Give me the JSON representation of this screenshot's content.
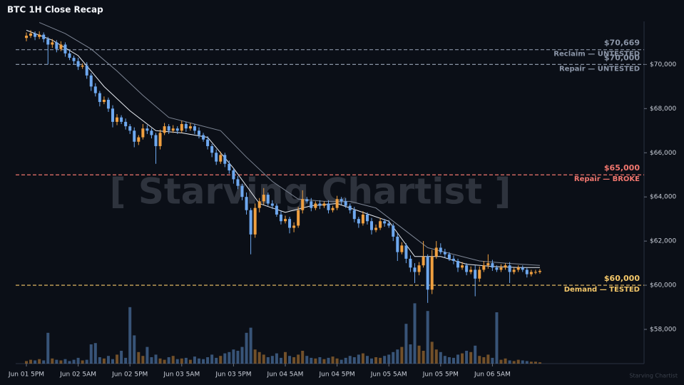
{
  "chart_data": {
    "type": "candlestick",
    "title": "BTC 1H Close Recap",
    "categories": [
      "Jun 01 5PM",
      null,
      null,
      null,
      null,
      null,
      null,
      null,
      null,
      null,
      null,
      null,
      "Jun 02 5AM",
      null,
      null,
      null,
      null,
      null,
      null,
      null,
      null,
      null,
      null,
      null,
      "Jun 02 5PM",
      null,
      null,
      null,
      null,
      null,
      null,
      null,
      null,
      null,
      null,
      null,
      "Jun 03 5AM",
      null,
      null,
      null,
      null,
      null,
      null,
      null,
      null,
      null,
      null,
      null,
      "Jun 03 5PM",
      null,
      null,
      null,
      null,
      null,
      null,
      null,
      null,
      null,
      null,
      null,
      "Jun 04 5AM",
      null,
      null,
      null,
      null,
      null,
      null,
      null,
      null,
      null,
      null,
      null,
      "Jun 04 5PM",
      null,
      null,
      null,
      null,
      null,
      null,
      null,
      null,
      null,
      null,
      null,
      "Jun 05 5AM",
      null,
      null,
      null,
      null,
      null,
      null,
      null,
      null,
      null,
      null,
      null,
      "Jun 05 5PM",
      null,
      null,
      null,
      null,
      null,
      null,
      null,
      null,
      null,
      null,
      null,
      "Jun 06 5AM",
      null,
      null,
      null,
      null,
      null,
      null,
      null,
      null,
      null,
      null,
      null
    ],
    "open": [
      71200,
      71300,
      71400,
      71250,
      71350,
      71150,
      70900,
      71000,
      70700,
      70900,
      70500,
      70300,
      70150,
      69900,
      69950,
      69500,
      69000,
      68700,
      68300,
      68400,
      68000,
      67400,
      67600,
      67400,
      67200,
      67000,
      66500,
      66700,
      67100,
      67000,
      66800,
      66300,
      66900,
      67200,
      67000,
      67100,
      67000,
      67300,
      67100,
      67200,
      67000,
      66800,
      66600,
      66300,
      66000,
      65600,
      65900,
      65500,
      65200,
      64800,
      64500,
      64000,
      63400,
      62300,
      63500,
      63800,
      64100,
      63700,
      63600,
      63200,
      62900,
      63000,
      62600,
      62700,
      63400,
      63900,
      63800,
      63500,
      63700,
      63600,
      63700,
      63400,
      63500,
      63900,
      63800,
      63600,
      63400,
      63000,
      62800,
      63200,
      62900,
      62500,
      62600,
      62900,
      62800,
      62700,
      62200,
      61500,
      61800,
      61200,
      60800,
      60600,
      60900,
      61300,
      59800,
      61300,
      61700,
      61500,
      61400,
      61200,
      61100,
      60800,
      60900,
      60600,
      60700,
      60300,
      60700,
      60900,
      61000,
      60800,
      60700,
      60800,
      60900,
      60600,
      60700,
      60800,
      60700,
      60500,
      60600,
      60600
    ],
    "high": [
      71450,
      71550,
      71500,
      71500,
      71450,
      71250,
      71150,
      71100,
      71050,
      71000,
      70650,
      70400,
      70300,
      70050,
      70100,
      69600,
      69150,
      68800,
      68550,
      68500,
      68150,
      67750,
      67700,
      67550,
      67300,
      67150,
      66800,
      67300,
      67250,
      67100,
      66900,
      67050,
      67350,
      67300,
      67250,
      67200,
      67450,
      67400,
      67350,
      67300,
      67150,
      66900,
      66750,
      66400,
      66150,
      66050,
      66000,
      65650,
      65300,
      64950,
      64600,
      64200,
      63500,
      63700,
      63950,
      64400,
      64200,
      63850,
      63700,
      63350,
      63150,
      63100,
      62850,
      63550,
      64300,
      64000,
      63950,
      63800,
      63850,
      63800,
      63850,
      63600,
      64050,
      64000,
      63950,
      63700,
      63550,
      63100,
      63350,
      63300,
      63050,
      62750,
      63050,
      63000,
      62950,
      62800,
      62350,
      61950,
      61900,
      61350,
      61000,
      61050,
      62000,
      61400,
      61600,
      62000,
      61900,
      61650,
      61500,
      61350,
      61200,
      61050,
      61000,
      60850,
      60900,
      60850,
      61100,
      61400,
      61150,
      60900,
      60950,
      61000,
      61050,
      60800,
      60900,
      60900,
      60800,
      60700,
      60700,
      60730
    ],
    "low": [
      71050,
      71200,
      71100,
      71150,
      71000,
      70000,
      70750,
      70550,
      70600,
      70350,
      70200,
      70000,
      69750,
      69800,
      69350,
      68800,
      68550,
      68100,
      68200,
      67850,
      67150,
      67250,
      67300,
      67050,
      66850,
      66250,
      66350,
      66600,
      66850,
      66650,
      65500,
      66150,
      66800,
      66850,
      66900,
      66850,
      66900,
      66950,
      67000,
      66850,
      66650,
      66500,
      66150,
      65800,
      65450,
      65500,
      65350,
      65050,
      64600,
      64350,
      63850,
      63200,
      61400,
      62150,
      63300,
      63650,
      63600,
      63450,
      63100,
      62750,
      62800,
      62350,
      62400,
      62600,
      63250,
      63700,
      63350,
      63400,
      63450,
      63500,
      63250,
      63300,
      63400,
      63650,
      63500,
      63250,
      62850,
      62600,
      62700,
      62750,
      62300,
      62400,
      62500,
      62650,
      62600,
      62000,
      61100,
      61400,
      61000,
      60600,
      60100,
      60450,
      60800,
      59200,
      59600,
      61200,
      61400,
      61250,
      61100,
      60950,
      60600,
      60700,
      60450,
      60500,
      59500,
      60150,
      60600,
      60750,
      60650,
      60600,
      60600,
      60700,
      60100,
      60500,
      60600,
      60600,
      60350,
      60400,
      60500,
      60520
    ],
    "close": [
      71300,
      71400,
      71250,
      71350,
      71150,
      70900,
      71000,
      70700,
      70900,
      70500,
      70300,
      70150,
      69900,
      69950,
      69500,
      69000,
      68700,
      68300,
      68400,
      68000,
      67400,
      67600,
      67400,
      67200,
      67000,
      66500,
      66700,
      67100,
      67000,
      66800,
      66300,
      66900,
      67200,
      67000,
      67100,
      67000,
      67300,
      67100,
      67200,
      67000,
      66800,
      66600,
      66300,
      66000,
      65600,
      65900,
      65500,
      65200,
      64800,
      64500,
      64000,
      63400,
      62300,
      63500,
      63800,
      64100,
      63700,
      63600,
      63200,
      62900,
      63000,
      62600,
      62700,
      63400,
      63900,
      63800,
      63500,
      63700,
      63600,
      63700,
      63400,
      63500,
      63900,
      63800,
      63600,
      63400,
      63000,
      62800,
      63200,
      62900,
      62500,
      62600,
      62900,
      62800,
      62700,
      62200,
      61500,
      61800,
      61200,
      60800,
      60600,
      60900,
      61300,
      59800,
      61300,
      61700,
      61500,
      61400,
      61200,
      61100,
      60800,
      60900,
      60600,
      60700,
      60300,
      60700,
      60900,
      61000,
      60800,
      60700,
      60800,
      60900,
      60600,
      60700,
      60800,
      60700,
      60500,
      60600,
      60600,
      60650
    ],
    "volume": [
      4,
      6,
      5,
      7,
      5,
      48,
      8,
      6,
      5,
      7,
      4,
      6,
      9,
      5,
      6,
      30,
      32,
      10,
      8,
      12,
      7,
      14,
      20,
      9,
      88,
      44,
      18,
      12,
      26,
      10,
      14,
      8,
      6,
      10,
      12,
      7,
      8,
      9,
      6,
      11,
      8,
      7,
      10,
      14,
      9,
      12,
      16,
      18,
      22,
      20,
      26,
      48,
      56,
      22,
      18,
      14,
      10,
      12,
      16,
      9,
      18,
      12,
      10,
      14,
      20,
      12,
      9,
      8,
      10,
      7,
      9,
      11,
      8,
      6,
      9,
      12,
      10,
      14,
      16,
      12,
      8,
      10,
      9,
      12,
      14,
      18,
      22,
      26,
      62,
      30,
      94,
      28,
      20,
      82,
      34,
      22,
      18,
      12,
      10,
      9,
      14,
      16,
      20,
      18,
      28,
      12,
      10,
      14,
      9,
      80,
      6,
      8,
      5,
      4,
      6,
      5,
      4,
      3,
      3,
      2
    ],
    "up_color": "#f0a040",
    "down_color": "#6ea8ef",
    "lines": [
      {
        "color": "#e8ecf2",
        "x": [
          0,
          6,
          12,
          18,
          24,
          30,
          36,
          42,
          48,
          54,
          60,
          66,
          72,
          78,
          84,
          90,
          96,
          102,
          108,
          114,
          119
        ],
        "values": [
          71550,
          71100,
          70400,
          69000,
          67900,
          67000,
          66900,
          66700,
          65300,
          63700,
          63300,
          63600,
          63700,
          63300,
          62900,
          61300,
          61300,
          60950,
          60850,
          60800,
          60800
        ]
      },
      {
        "color": "#7d8594",
        "x": [
          3,
          9,
          15,
          21,
          27,
          33,
          39,
          45,
          51,
          57,
          63,
          69,
          75,
          81,
          87,
          93,
          99,
          105,
          111,
          119
        ],
        "values": [
          71900,
          71400,
          70700,
          69700,
          68600,
          67600,
          67300,
          67000,
          65800,
          64700,
          63900,
          63800,
          63800,
          63500,
          62600,
          61700,
          61400,
          61100,
          61000,
          60900
        ]
      }
    ],
    "levels": [
      {
        "value": 70669,
        "label": "$70,669",
        "note": "Reclaim — UNTESTED",
        "color": "#8a94a6"
      },
      {
        "value": 70000,
        "label": "$70,000",
        "note": "Repair — UNTESTED",
        "color": "#8a94a6"
      },
      {
        "value": 65000,
        "label": "$65,000",
        "note": "Repair — BROKE",
        "color": "#f0766e"
      },
      {
        "value": 60000,
        "label": "$60,000",
        "note": "Demand — TESTED",
        "color": "#f5c86a"
      }
    ],
    "ylim": [
      56450,
      71950
    ],
    "yticks": [
      {
        "value": 58000,
        "label": "$58,000"
      },
      {
        "value": 60000,
        "label": "$60,000"
      },
      {
        "value": 62000,
        "label": "$62,000"
      },
      {
        "value": 64000,
        "label": "$64,000"
      },
      {
        "value": 66000,
        "label": "$66,000"
      },
      {
        "value": 68000,
        "label": "$68,000"
      },
      {
        "value": 70000,
        "label": "$70,000"
      }
    ],
    "watermark": "[ Starving Chartist ]",
    "credit": "Starving Chartist"
  }
}
